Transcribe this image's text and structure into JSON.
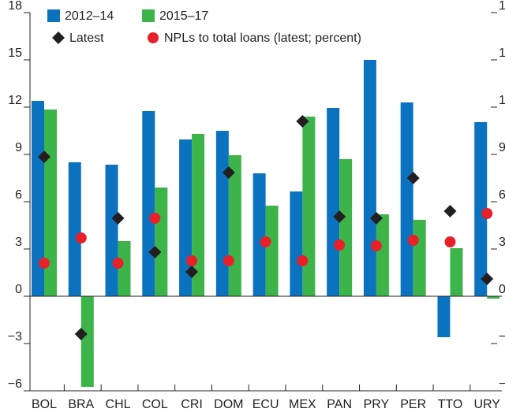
{
  "chart_data": {
    "type": "bar",
    "categories": [
      "BOL",
      "BRA",
      "CHL",
      "COL",
      "CRI",
      "DOM",
      "ECU",
      "MEX",
      "PAN",
      "PRY",
      "PER",
      "TTO",
      "URY"
    ],
    "series": [
      {
        "name": "2012–14",
        "color": "#0b72bf",
        "marker": "bar",
        "values": [
          12.4,
          8.5,
          8.35,
          11.75,
          9.95,
          10.5,
          7.8,
          6.65,
          11.95,
          15.0,
          12.3,
          -2.6,
          11.05
        ]
      },
      {
        "name": "2015–17",
        "color": "#3cb449",
        "marker": "bar",
        "values": [
          11.85,
          -5.75,
          3.5,
          6.9,
          10.3,
          8.95,
          5.75,
          11.4,
          8.7,
          5.2,
          4.85,
          3.05,
          -0.15
        ]
      },
      {
        "name": "Latest",
        "color": "#231f20",
        "marker": "diamond",
        "values": [
          8.85,
          -2.4,
          4.95,
          2.8,
          1.55,
          7.85,
          null,
          11.1,
          5.05,
          4.95,
          7.5,
          5.4,
          1.1
        ]
      },
      {
        "name": "NPLs to total loans (latest; percent)",
        "color": "#e8202a",
        "marker": "circle",
        "values": [
          2.1,
          3.7,
          2.1,
          4.95,
          2.25,
          2.25,
          3.45,
          2.25,
          3.25,
          3.2,
          3.55,
          3.45,
          5.25
        ]
      }
    ],
    "ylim": [
      -6,
      18
    ],
    "yticks": [
      {
        "value": -6,
        "label": "−6"
      },
      {
        "value": -3,
        "label": "−3"
      },
      0,
      3,
      6,
      9,
      12,
      15,
      18
    ]
  }
}
